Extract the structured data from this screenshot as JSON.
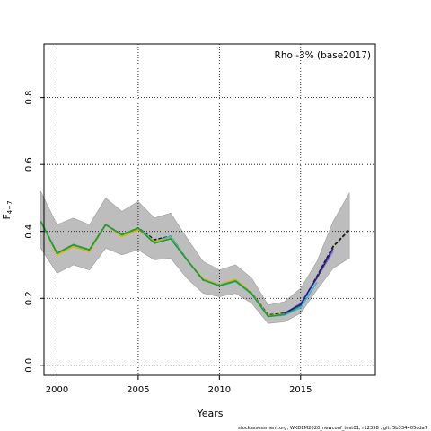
{
  "chart_data": {
    "type": "line",
    "title": "",
    "annotation": "Rho -3% (base2017)",
    "xlabel": "Years",
    "ylabel_main": "F",
    "ylabel_sub": "4−7",
    "xlim": [
      1999.2,
      2019.6
    ],
    "ylim": [
      -0.03,
      0.96
    ],
    "xticks": [
      2000,
      2005,
      2010,
      2015
    ],
    "yticks": [
      0.0,
      0.2,
      0.4,
      0.6,
      0.8
    ],
    "ytick_labels": [
      "0.0",
      "0.2",
      "0.4",
      "0.6",
      "0.8"
    ],
    "grid": "dotted at ticks",
    "band": {
      "x": [
        1999,
        2000,
        2001,
        2002,
        2003,
        2004,
        2005,
        2006,
        2007,
        2008,
        2009,
        2010,
        2011,
        2012,
        2013,
        2014,
        2015,
        2016,
        2017,
        2018
      ],
      "lower": [
        0.35,
        0.275,
        0.3,
        0.285,
        0.35,
        0.33,
        0.345,
        0.315,
        0.32,
        0.26,
        0.215,
        0.205,
        0.215,
        0.185,
        0.125,
        0.13,
        0.155,
        0.225,
        0.29,
        0.32
      ],
      "upper": [
        0.52,
        0.42,
        0.44,
        0.42,
        0.5,
        0.46,
        0.49,
        0.44,
        0.455,
        0.38,
        0.31,
        0.285,
        0.3,
        0.26,
        0.18,
        0.19,
        0.23,
        0.31,
        0.43,
        0.515
      ]
    },
    "series": [
      {
        "color": "#1a1a1a",
        "x": [
          1999,
          2000,
          2001,
          2002,
          2003,
          2004,
          2005,
          2006,
          2007,
          2008,
          2009,
          2010,
          2011,
          2012,
          2013,
          2014,
          2015,
          2016,
          2017,
          2018
        ],
        "values": [
          0.43,
          0.335,
          0.36,
          0.345,
          0.42,
          0.39,
          0.41,
          0.375,
          0.385,
          0.315,
          0.255,
          0.24,
          0.255,
          0.215,
          0.15,
          0.155,
          0.18,
          0.265,
          0.355,
          0.405
        ],
        "dashed": true
      },
      {
        "color": "#2fb8e0",
        "x": [
          1999,
          2000,
          2001,
          2002,
          2003,
          2004,
          2005,
          2006,
          2007,
          2008,
          2009,
          2010,
          2011,
          2012,
          2013,
          2014,
          2015,
          2016
        ],
        "values": [
          0.43,
          0.335,
          0.36,
          0.345,
          0.42,
          0.39,
          0.41,
          0.37,
          0.385,
          0.315,
          0.255,
          0.237,
          0.25,
          0.212,
          0.146,
          0.15,
          0.172,
          0.248
        ]
      },
      {
        "color": "#d8b400",
        "x": [
          1999,
          2000,
          2001,
          2002,
          2003,
          2004,
          2005,
          2006,
          2007,
          2008,
          2009,
          2010,
          2011,
          2012,
          2013,
          2014
        ],
        "values": [
          0.43,
          0.33,
          0.355,
          0.34,
          0.42,
          0.385,
          0.405,
          0.37,
          0.38,
          0.315,
          0.258,
          0.24,
          0.256,
          0.215,
          0.148,
          0.153
        ]
      },
      {
        "color": "#1a9d3a",
        "x": [
          1999,
          2000,
          2001,
          2002,
          2003,
          2004,
          2005,
          2006,
          2007,
          2008,
          2009,
          2010,
          2011,
          2012,
          2013,
          2014,
          2015
        ],
        "values": [
          0.43,
          0.335,
          0.36,
          0.345,
          0.42,
          0.39,
          0.41,
          0.365,
          0.378,
          0.315,
          0.255,
          0.238,
          0.252,
          0.213,
          0.146,
          0.152,
          0.178
        ]
      },
      {
        "color": "#8a7fd0",
        "x": [
          2014,
          2015,
          2016,
          2017
        ],
        "values": [
          0.155,
          0.185,
          0.26,
          0.34
        ]
      },
      {
        "color": "#2a1a8f",
        "x": [
          2014,
          2015,
          2016,
          2017
        ],
        "values": [
          0.155,
          0.182,
          0.262,
          0.35
        ]
      }
    ],
    "footer": "stockassessment.org,  WKDEM2020_newconf_test01,  r12358 ,  git: 5b334405cda7"
  }
}
